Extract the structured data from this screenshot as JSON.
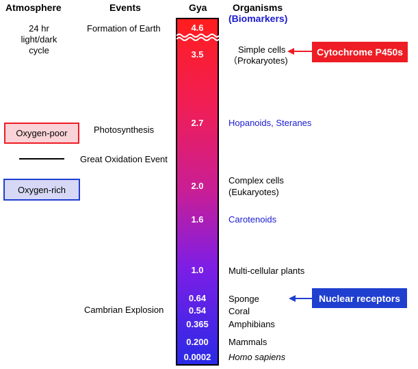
{
  "headers": {
    "atmosphere": "Atmosphere",
    "events": "Events",
    "gya": "Gya",
    "organisms": "Organisms",
    "biomarkers": "(Biomarkers)"
  },
  "atmosphere": {
    "cycle_line1": "24 hr",
    "cycle_line2": "light/dark",
    "cycle_line3": "cycle",
    "oxygen_poor": "Oxygen-poor",
    "oxygen_rich": "Oxygen-rich"
  },
  "events": {
    "formation": "Formation of Earth",
    "photosynthesis": "Photosynthesis",
    "great_oxidation": "Great Oxidation Event",
    "cambrian": "Cambrian Explosion"
  },
  "gya": [
    "4.6",
    "3.5",
    "2.7",
    "2.0",
    "1.6",
    "1.0",
    "0.64",
    "0.54",
    "0.365",
    "0.200",
    "0.0002"
  ],
  "organisms": {
    "simple_cells": "Simple cells",
    "prokaryotes": "（Prokaryotes)",
    "hopanoids": "Hopanoids, Steranes",
    "complex_cells": "Complex cells",
    "eukaryotes": "(Eukaryotes)",
    "carotenoids": "Carotenoids",
    "multicellular": "Multi-cellular plants",
    "sponge": "Sponge",
    "coral": "Coral",
    "amphibians": "Amphibians",
    "mammals": "Mammals",
    "homo_sapiens": "Homo sapiens"
  },
  "callouts": {
    "cytochrome": "Cytochrome P450s",
    "nuclear": "Nuclear receptors"
  },
  "colors": {
    "red_box": "#ee1c24",
    "blue_box": "#1f3fcf",
    "biomarker_text": "#1a1ad0",
    "oxygen_poor_fill": "#f9d3d7",
    "oxygen_rich_fill": "#d6d8f5"
  }
}
